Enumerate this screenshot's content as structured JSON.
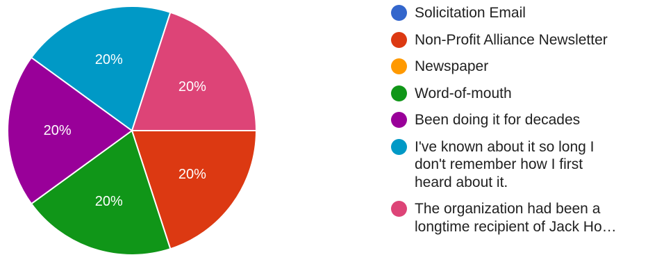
{
  "chart_data": {
    "type": "pie",
    "categories": [
      "Solicitation Email",
      "Non-Profit Alliance Newsletter",
      "Newspaper",
      "Word-of-mouth",
      "Been doing it for decades",
      "I've known about it so long I don't remember how I first heard about it.",
      "The organization had been a longtime recipient of Jack Ho…"
    ],
    "legend_labels": [
      "Solicitation Email",
      "Non-Profit Alliance Newsletter",
      "Newspaper",
      "Word-of-mouth",
      "Been doing it for decades",
      "I've known about it so long I\ndon't remember how I first\nheard about it.",
      "The organization had been a\nlongtime recipient of Jack Ho…"
    ],
    "values": [
      0,
      20,
      0,
      20,
      20,
      20,
      20
    ],
    "value_labels": [
      "",
      "20%",
      "",
      "20%",
      "20%",
      "20%",
      "20%"
    ],
    "colors": [
      "#3366cc",
      "#dc3912",
      "#ff9900",
      "#109618",
      "#990099",
      "#0099c6",
      "#dd4477"
    ],
    "start_angle_deg": 90,
    "direction": "clockwise",
    "legend_position": "right",
    "title": ""
  }
}
